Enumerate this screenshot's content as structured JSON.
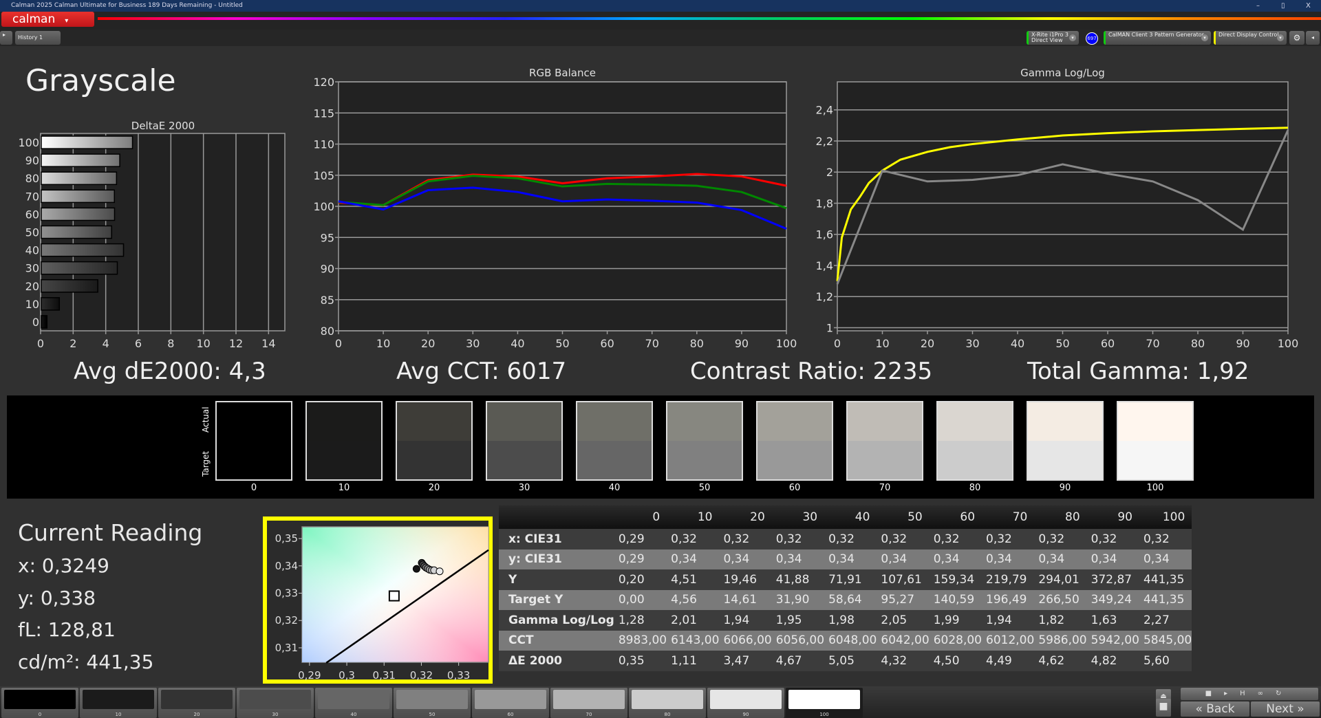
{
  "window": {
    "title": "Calman 2025 Calman Ultimate for Business 189 Days Remaining  - Untitled",
    "minimize": "–",
    "restore": "▯",
    "close": "X"
  },
  "logo": "calman",
  "toolbar": {
    "history_tab": "History 1",
    "meter": "X-Rite i1Pro 3",
    "meter_mode": "Direct View",
    "meter_badge": "697",
    "pattern_gen": "CalMAN Client 3 Pattern Generator",
    "display_control": "Direct Display Control"
  },
  "page_title": "Grayscale",
  "stats": {
    "avg_de": "Avg dE2000: 4,3",
    "avg_cct": "Avg CCT: 6017",
    "contrast": "Contrast Ratio: 2235",
    "total_gamma": "Total Gamma: 1,92"
  },
  "swatches": {
    "actual_label": "Actual",
    "target_label": "Target",
    "levels": [
      "0",
      "10",
      "20",
      "30",
      "40",
      "50",
      "60",
      "70",
      "80",
      "90",
      "100"
    ],
    "actual_colors": [
      "#000000",
      "#1b1b1a",
      "#3e3d38",
      "#5a5a54",
      "#6f6f68",
      "#878780",
      "#a3a19a",
      "#c0bcb6",
      "#dad6d0",
      "#f4ece3",
      "#fff6ee"
    ],
    "target_colors": [
      "#000000",
      "#1b1b1b",
      "#333333",
      "#4c4c4c",
      "#666666",
      "#808080",
      "#999999",
      "#b3b3b3",
      "#cccccc",
      "#e6e6e6",
      "#f6f6f6"
    ]
  },
  "current_reading": {
    "title": "Current Reading",
    "x": "x: 0,3249",
    "y": "y: 0,338",
    "fl": "fL: 128,81",
    "cdm2": "cd/m²: 441,35"
  },
  "table": {
    "columns": [
      "0",
      "10",
      "20",
      "30",
      "40",
      "50",
      "60",
      "70",
      "80",
      "90",
      "100"
    ],
    "rows": [
      {
        "label": "x: CIE31",
        "values": [
          "0,29",
          "0,32",
          "0,32",
          "0,32",
          "0,32",
          "0,32",
          "0,32",
          "0,32",
          "0,32",
          "0,32",
          "0,32"
        ]
      },
      {
        "label": "y: CIE31",
        "values": [
          "0,29",
          "0,34",
          "0,34",
          "0,34",
          "0,34",
          "0,34",
          "0,34",
          "0,34",
          "0,34",
          "0,34",
          "0,34"
        ]
      },
      {
        "label": "Y",
        "values": [
          "0,20",
          "4,51",
          "19,46",
          "41,88",
          "71,91",
          "107,61",
          "159,34",
          "219,79",
          "294,01",
          "372,87",
          "441,35"
        ]
      },
      {
        "label": "Target Y",
        "values": [
          "0,00",
          "4,56",
          "14,61",
          "31,90",
          "58,64",
          "95,27",
          "140,59",
          "196,49",
          "266,50",
          "349,24",
          "441,35"
        ]
      },
      {
        "label": "Gamma Log/Log",
        "values": [
          "1,28",
          "2,01",
          "1,94",
          "1,95",
          "1,98",
          "2,05",
          "1,99",
          "1,94",
          "1,82",
          "1,63",
          "2,27"
        ]
      },
      {
        "label": "CCT",
        "values": [
          "8983,00",
          "6143,00",
          "6066,00",
          "6056,00",
          "6048,00",
          "6042,00",
          "6028,00",
          "6012,00",
          "5986,00",
          "5942,00",
          "5845,00"
        ]
      },
      {
        "label": "ΔE 2000",
        "values": [
          "0,35",
          "1,11",
          "3,47",
          "4,67",
          "5,05",
          "4,32",
          "4,50",
          "4,49",
          "4,62",
          "4,82",
          "5,60"
        ]
      }
    ]
  },
  "bottom": {
    "back": "Back",
    "next": "Next"
  },
  "chart_data": [
    {
      "type": "bar",
      "title": "DeltaE 2000",
      "orientation": "horizontal",
      "categories": [
        "0",
        "10",
        "20",
        "30",
        "40",
        "50",
        "60",
        "70",
        "80",
        "90",
        "100"
      ],
      "values": [
        0.35,
        1.11,
        3.47,
        4.67,
        5.05,
        4.32,
        4.5,
        4.49,
        4.62,
        4.82,
        5.6
      ],
      "xlim": [
        0,
        15
      ],
      "xticks": [
        "0",
        "2",
        "4",
        "6",
        "8",
        "10",
        "12",
        "14"
      ],
      "grid": true
    },
    {
      "type": "line",
      "title": "RGB Balance",
      "x": [
        0,
        10,
        20,
        30,
        40,
        50,
        60,
        70,
        80,
        90,
        100
      ],
      "ylim": [
        80,
        120
      ],
      "yticks": [
        "80",
        "85",
        "90",
        "95",
        "100",
        "105",
        "110",
        "115",
        "120"
      ],
      "xticks": [
        "0",
        "10",
        "20",
        "30",
        "40",
        "50",
        "60",
        "70",
        "80",
        "90",
        "100"
      ],
      "grid": true,
      "series": [
        {
          "color": "#ff0000",
          "values": [
            100.6,
            100.2,
            104.2,
            105.1,
            104.8,
            103.7,
            104.5,
            104.8,
            105.2,
            104.8,
            103.3
          ]
        },
        {
          "color": "#008800",
          "values": [
            100.7,
            100.2,
            104.0,
            104.9,
            104.5,
            103.2,
            103.6,
            103.5,
            103.3,
            102.3,
            99.7
          ]
        },
        {
          "color": "#0000ff",
          "values": [
            100.8,
            99.5,
            102.6,
            103.0,
            102.3,
            100.8,
            101.1,
            100.9,
            100.6,
            99.4,
            96.4
          ]
        }
      ]
    },
    {
      "type": "line",
      "title": "Gamma Log/Log",
      "ylim": [
        0.98,
        2.58
      ],
      "yticks": [
        "1",
        "1,2",
        "1,4",
        "1,6",
        "1,8",
        "2",
        "2,2",
        "2,4"
      ],
      "xticks": [
        "0",
        "10",
        "20",
        "30",
        "40",
        "50",
        "60",
        "70",
        "80",
        "90",
        "100"
      ],
      "grid": true,
      "series": [
        {
          "color": "#ffff00",
          "x": [
            0,
            1,
            3,
            5,
            7,
            10,
            14,
            20,
            25,
            30,
            40,
            50,
            60,
            70,
            80,
            90,
            100
          ],
          "values": [
            1.3,
            1.58,
            1.76,
            1.84,
            1.93,
            2.01,
            2.08,
            2.13,
            2.16,
            2.18,
            2.21,
            2.235,
            2.25,
            2.262,
            2.27,
            2.278,
            2.285
          ]
        },
        {
          "color": "#888888",
          "x": [
            0,
            10,
            20,
            30,
            40,
            50,
            60,
            70,
            80,
            90,
            100
          ],
          "values": [
            1.28,
            2.01,
            1.94,
            1.95,
            1.98,
            2.05,
            1.99,
            1.94,
            1.82,
            1.63,
            2.27
          ]
        }
      ]
    },
    {
      "type": "scatter",
      "title": "",
      "xlim": [
        0.288,
        0.338
      ],
      "ylim": [
        0.3047,
        0.3543
      ],
      "xticks": [
        "0,29",
        "0,3",
        "0,31",
        "0,32",
        "0,33"
      ],
      "yticks": [
        "0,31",
        "0,32",
        "0,33",
        "0,34",
        "0,35"
      ],
      "target": {
        "x": 0.3127,
        "y": 0.329
      },
      "planckian": [
        [
          0.2945,
          0.3045
        ],
        [
          0.338,
          0.3458
        ]
      ],
      "points": [
        {
          "level": "10",
          "x": 0.3187,
          "y": 0.3389
        },
        {
          "level": "20",
          "x": 0.3201,
          "y": 0.3411
        },
        {
          "level": "30",
          "x": 0.3204,
          "y": 0.3405
        },
        {
          "level": "40",
          "x": 0.3208,
          "y": 0.3399
        },
        {
          "level": "50",
          "x": 0.3212,
          "y": 0.3394
        },
        {
          "level": "60",
          "x": 0.3217,
          "y": 0.339
        },
        {
          "level": "70",
          "x": 0.3222,
          "y": 0.3386
        },
        {
          "level": "80",
          "x": 0.3228,
          "y": 0.3384
        },
        {
          "level": "90",
          "x": 0.3234,
          "y": 0.3384
        },
        {
          "level": "100",
          "x": 0.3249,
          "y": 0.338
        }
      ]
    }
  ]
}
